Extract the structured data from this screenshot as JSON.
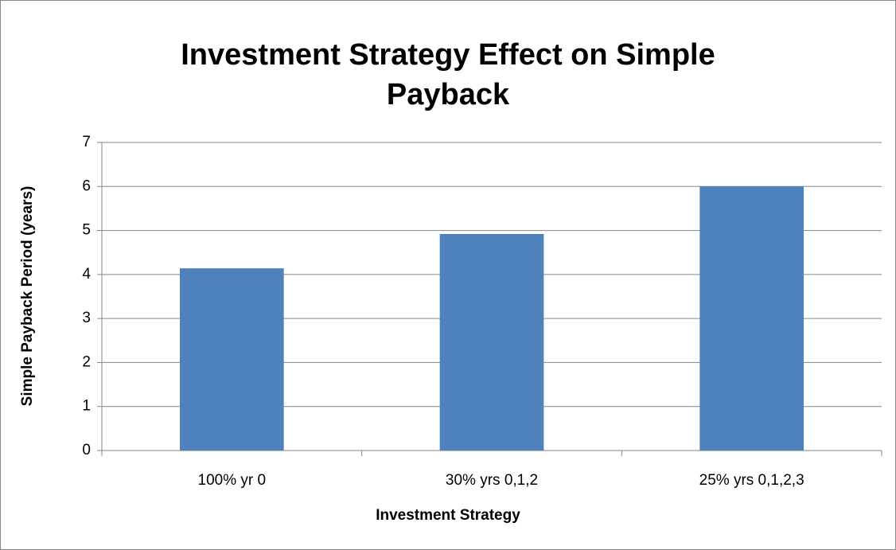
{
  "chart_data": {
    "type": "bar",
    "title": "Investment Strategy Effect on Simple Payback",
    "x_label": "Investment Strategy",
    "y_label": "Simple Payback Period (years)",
    "categories": [
      "100% yr 0",
      "30% yrs 0,1,2",
      "25% yrs 0,1,2,3"
    ],
    "values": [
      4.14,
      4.92,
      6.0
    ],
    "color": "#4f81bd",
    "ylim": [
      0,
      7
    ],
    "yticks": [
      0,
      1,
      2,
      3,
      4,
      5,
      6,
      7
    ],
    "grid": true
  }
}
